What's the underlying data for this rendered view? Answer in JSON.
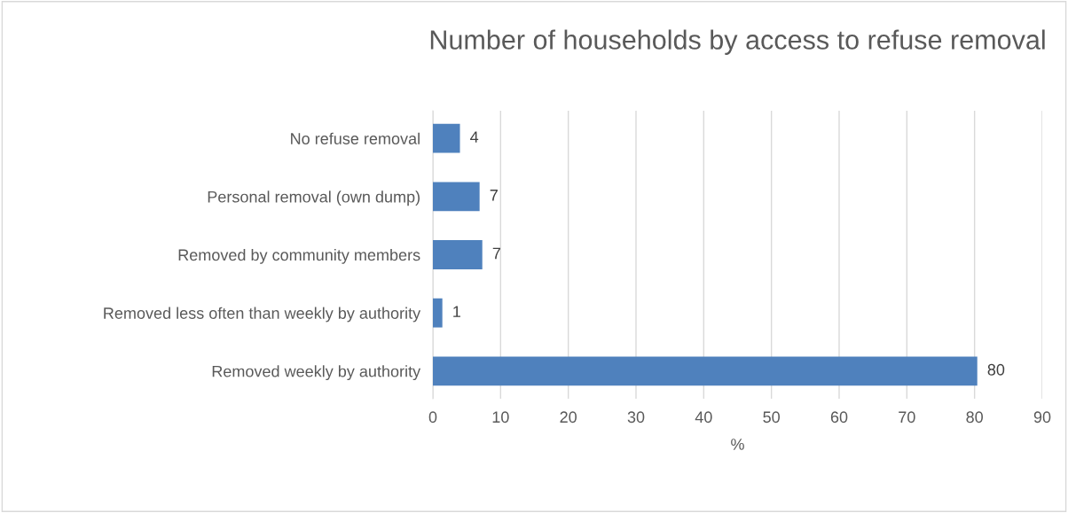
{
  "chart_data": {
    "type": "bar",
    "orientation": "horizontal",
    "title": "Number of households by access to refuse removal",
    "categories": [
      "No refuse removal",
      "Personal removal (own dump)",
      "Removed by community members",
      "Removed less often than weekly by authority",
      "Removed weekly by authority"
    ],
    "values": [
      4,
      6.9,
      7.3,
      1.4,
      80.4
    ],
    "value_labels": [
      "4",
      "7",
      "7",
      "1",
      "80"
    ],
    "color": "#4f81bd",
    "xlabel": "%",
    "xlim": [
      0,
      90
    ],
    "xticks": [
      0,
      10,
      20,
      30,
      40,
      50,
      60,
      70,
      80,
      90
    ],
    "grid": "x"
  }
}
